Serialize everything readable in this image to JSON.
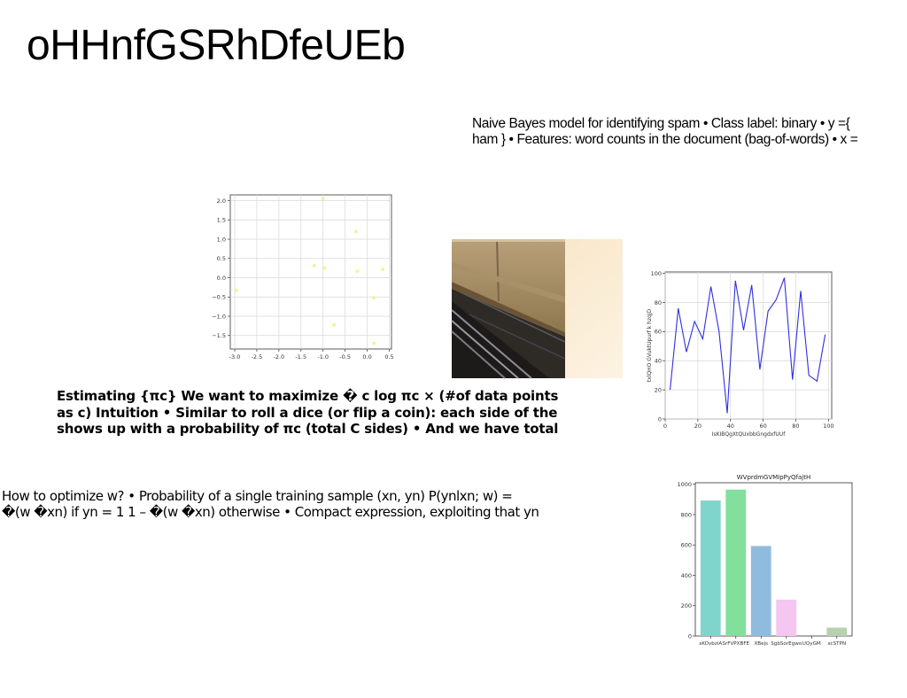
{
  "page": {
    "title": "oHHnfGSRhDfeUEb",
    "paragraphs": {
      "naive_bayes": [
        "Naive Bayes model for identifying spam • Class label: binary • y ={",
        "ham } • Features: word counts in the document (bag-of-words) • x ="
      ],
      "estimating": [
        "Estimating {πc} We want to maximize � c log πc × (#of data points",
        "as c) Intuition • Similar to roll a dice (or flip a coin): each side of the",
        "shows up with a probability of πc (total C sides) • And we have total"
      ],
      "optimize": [
        "How to optimize w? • Probability of a single training sample (xn, yn) P(ynlxn; w) =",
        "�(w �xn) if yn = 1 1 – �(w �xn) otherwise • Compact expression, exploiting that yn"
      ]
    },
    "photo": {
      "description_icon": "building-photo-icon"
    }
  },
  "chart_data": [
    {
      "type": "scatter",
      "title": "",
      "xlabel": "",
      "ylabel": "",
      "xlim": [
        -3.1,
        0.55
      ],
      "ylim": [
        -1.85,
        2.15
      ],
      "xticks": [
        "-3.0",
        "-2.5",
        "-2.0",
        "-1.5",
        "-1.0",
        "-0.5",
        "0.0",
        "0.5"
      ],
      "yticks": [
        "−1.5",
        "−1.0",
        "−0.5",
        "0.0",
        "0.5",
        "1.0",
        "1.5",
        "2.0"
      ],
      "grid": true,
      "color": "#f2f28c",
      "x": [
        -2.97,
        -1.0,
        -1.2,
        -0.97,
        -0.25,
        -0.22,
        0.35,
        0.15,
        -0.75,
        0.15
      ],
      "y": [
        -0.33,
        2.05,
        0.32,
        0.25,
        1.2,
        0.17,
        0.22,
        -0.52,
        -1.22,
        -1.7
      ]
    },
    {
      "type": "line",
      "title": "",
      "xlabel": "IsKIBQgXtQUxbbGngdxfUUf",
      "ylabel": "txlQHO GVuktUpurf k hzqjD",
      "xlim": [
        0,
        102
      ],
      "ylim": [
        0,
        101
      ],
      "xticks": [
        "0",
        "20",
        "40",
        "60",
        "80",
        "100"
      ],
      "yticks": [
        "0",
        "20",
        "40",
        "60",
        "80",
        "100"
      ],
      "grid": true,
      "color": "#2f2fe0",
      "series": [
        {
          "x": [
            3,
            8,
            13,
            18,
            23,
            28,
            33,
            38,
            43,
            48,
            53,
            58,
            63,
            68,
            73,
            78,
            83,
            88,
            93,
            98
          ],
          "y": [
            20,
            76,
            46,
            67,
            55,
            91,
            60,
            4,
            95,
            61,
            92,
            34,
            74,
            82,
            97,
            27,
            88,
            30,
            26,
            58
          ]
        }
      ]
    },
    {
      "type": "bar",
      "title": "WVprdmGVMIpPyQfajtH",
      "xlabel": "",
      "ylabel": "",
      "ylim": [
        0,
        1010
      ],
      "yticks": [
        "0",
        "200",
        "400",
        "600",
        "800",
        "1000"
      ],
      "grid": false,
      "categories": [
        "sKOvbziA",
        "SrFVPXBFE",
        "XBejs",
        "SgbSorEgwo",
        "UQyGM",
        "xcSTPN"
      ],
      "values": [
        893,
        965,
        593,
        240,
        0,
        55
      ],
      "colors": [
        "#7fd4cc",
        "#82e09c",
        "#8fbcde",
        "#f5c6f0",
        "#d0e8c8",
        "#b6d1b0"
      ]
    }
  ]
}
